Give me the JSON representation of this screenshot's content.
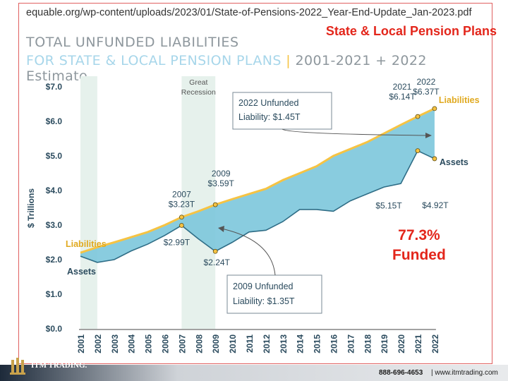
{
  "header": {
    "url": "equable.org/wp-content/uploads/2023/01/State-of-Pensions-2022_Year-End-Update_Jan-2023.pdf",
    "slide_title": "State & Local Pension Plans",
    "chart_title_line1": "TOTAL UNFUNDED LIABILITIES",
    "chart_title_line2_a": "FOR STATE & LOCAL PENSION PLANS",
    "chart_title_line2_sep": "|",
    "chart_title_line2_b": "2001-2021 + 2022 Estimate"
  },
  "funded_note": {
    "pct": "77.3%",
    "label": "Funded"
  },
  "footer": {
    "brand": "ITM TRADING.",
    "phone": "888-696-4653",
    "sep": "|",
    "web": "www.itmtrading.com"
  },
  "colors": {
    "liabilities": "#f6c343",
    "assets_fill": "#7cc6dc",
    "assets_line": "#2f6d86",
    "recession": "#e6f1ec",
    "accent": "#e3261b"
  },
  "chart_data": {
    "type": "area",
    "ylabel": "$ Trillions",
    "ylim": [
      0,
      7
    ],
    "y_ticks": [
      "$0.0",
      "$1.0",
      "$2.0",
      "$3.0",
      "$4.0",
      "$5.0",
      "$6.0",
      "$7.0"
    ],
    "x": [
      "2001",
      "2002",
      "2003",
      "2004",
      "2005",
      "2006",
      "2007",
      "2008",
      "2009",
      "2010",
      "2011",
      "2012",
      "2013",
      "2014",
      "2015",
      "2016",
      "2017",
      "2018",
      "2019",
      "2020",
      "2021",
      "2022"
    ],
    "series": [
      {
        "name": "Liabilities",
        "values": [
          2.2,
          2.36,
          2.5,
          2.65,
          2.8,
          3.0,
          3.23,
          3.4,
          3.59,
          3.75,
          3.9,
          4.05,
          4.3,
          4.5,
          4.7,
          5.0,
          5.2,
          5.4,
          5.65,
          5.9,
          6.14,
          6.37
        ]
      },
      {
        "name": "Assets",
        "values": [
          2.1,
          1.92,
          2.0,
          2.25,
          2.45,
          2.7,
          2.99,
          2.6,
          2.24,
          2.5,
          2.8,
          2.85,
          3.1,
          3.45,
          3.45,
          3.4,
          3.7,
          3.9,
          4.1,
          4.2,
          5.15,
          4.92
        ]
      }
    ],
    "shaded_regions": [
      {
        "label": "",
        "from": "2001",
        "to": "2002"
      },
      {
        "label": "Great Recession",
        "from": "2007",
        "to": "2009"
      }
    ],
    "series_labels": {
      "liabilities_left": "Liabilities",
      "liabilities_right": "Liabilities",
      "assets_left": "Assets",
      "assets_right": "Assets"
    },
    "annotations": [
      {
        "text": "2007",
        "value": "$3.23T",
        "x": "2007",
        "y": 3.23
      },
      {
        "text": "2009",
        "value": "$3.59T",
        "x": "2009",
        "y": 3.59
      },
      {
        "text": "2021",
        "value": "$6.14T",
        "x": "2021",
        "y": 6.14
      },
      {
        "text": "2022",
        "value": "$6.37T",
        "x": "2022",
        "y": 6.37
      },
      {
        "text": "",
        "value": "$2.99T",
        "x": "2007",
        "y": 2.99
      },
      {
        "text": "",
        "value": "$2.24T",
        "x": "2009",
        "y": 2.24
      },
      {
        "text": "",
        "value": "$5.15T",
        "x": "2021",
        "y": 5.15
      },
      {
        "text": "",
        "value": "$4.92T",
        "x": "2022",
        "y": 4.92
      }
    ],
    "callouts": [
      {
        "line1": "2022 Unfunded",
        "line2": "Liability: $1.45T"
      },
      {
        "line1": "2009 Unfunded",
        "line2": "Liability: $1.35T"
      }
    ],
    "grid": false
  }
}
